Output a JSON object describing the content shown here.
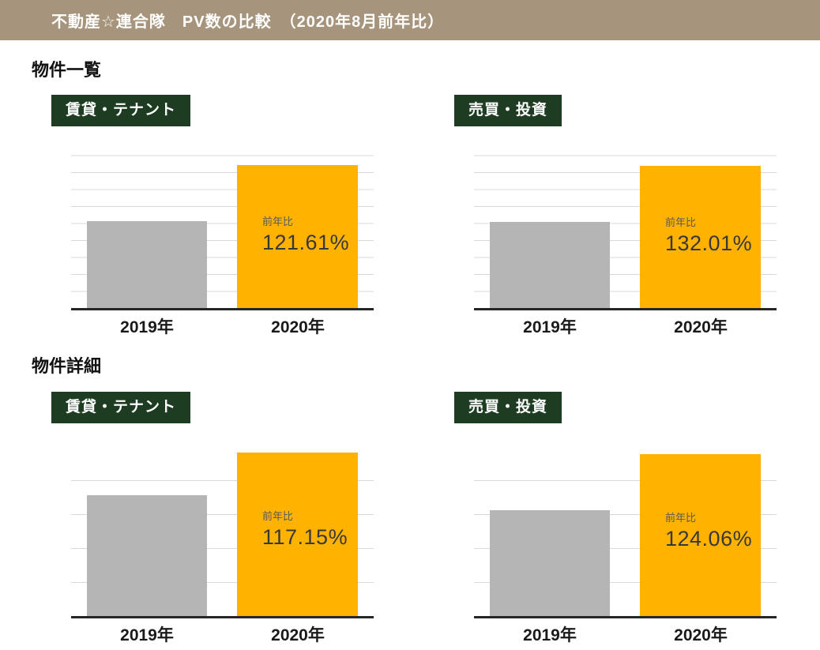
{
  "header": {
    "title": "不動産☆連合隊　PV数の比較　（2020年8月前年比）"
  },
  "sections": [
    {
      "title": "物件一覧"
    },
    {
      "title": "物件詳細"
    }
  ],
  "colors": {
    "header_bg": "#A6957C",
    "badge_bg": "#1E3C22",
    "bar_2019": "#B5B5B5",
    "bar_2020": "#FFB300",
    "gridline": "#D9D9D9",
    "axis_line": "#262626"
  },
  "chart_data": [
    {
      "type": "bar",
      "section": "物件一覧",
      "title": "賃貸・テナント",
      "categories": [
        "2019年",
        "2020年"
      ],
      "annotation_label": "前年比",
      "annotation_value": "121.61%",
      "yoy_percent": 121.61,
      "bar_colors": [
        "#B5B5B5",
        "#FFB300"
      ],
      "bar_height_pct_of_plot": [
        52.1,
        85.6
      ],
      "gridline_count": 10,
      "legend": "none",
      "y_axis_labels": "none"
    },
    {
      "type": "bar",
      "section": "物件一覧",
      "title": "売買・投資",
      "categories": [
        "2019年",
        "2020年"
      ],
      "annotation_label": "前年比",
      "annotation_value": "132.01%",
      "yoy_percent": 132.01,
      "bar_colors": [
        "#B5B5B5",
        "#FFB300"
      ],
      "bar_height_pct_of_plot": [
        51.2,
        84.7
      ],
      "gridline_count": 10,
      "legend": "none",
      "y_axis_labels": "none"
    },
    {
      "type": "bar",
      "section": "物件詳細",
      "title": "賃貸・テナント",
      "categories": [
        "2019年",
        "2020年"
      ],
      "annotation_label": "前年比",
      "annotation_value": "117.15%",
      "yoy_percent": 117.15,
      "bar_colors": [
        "#B5B5B5",
        "#FFB300"
      ],
      "bar_height_pct_of_plot": [
        72.1,
        97.7
      ],
      "gridline_count": 5,
      "legend": "none",
      "y_axis_labels": "none"
    },
    {
      "type": "bar",
      "section": "物件詳細",
      "title": "売買・投資",
      "categories": [
        "2019年",
        "2020年"
      ],
      "annotation_label": "前年比",
      "annotation_value": "124.06%",
      "yoy_percent": 124.06,
      "bar_colors": [
        "#B5B5B5",
        "#FFB300"
      ],
      "bar_height_pct_of_plot": [
        63.3,
        96.7
      ],
      "gridline_count": 5,
      "legend": "none",
      "y_axis_labels": "none"
    }
  ]
}
